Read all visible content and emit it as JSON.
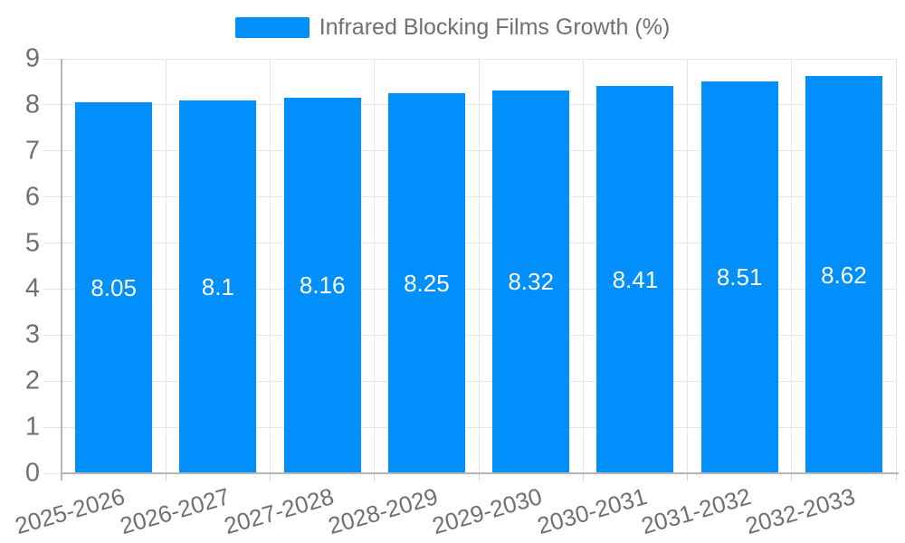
{
  "legend": {
    "label": "Infrared Blocking Films Growth (%)",
    "marker_color": "#008FFB"
  },
  "chart_data": {
    "type": "bar",
    "title": "Infrared Blocking Films Growth (%)",
    "categories": [
      "2025-2026",
      "2026-2027",
      "2027-2028",
      "2028-2029",
      "2029-2030",
      "2030-2031",
      "2031-2032",
      "2032-2033"
    ],
    "values": [
      8.05,
      8.1,
      8.16,
      8.25,
      8.32,
      8.41,
      8.51,
      8.62
    ],
    "value_labels": [
      "8.05",
      "8.1",
      "8.16",
      "8.25",
      "8.32",
      "8.41",
      "8.51",
      "8.62"
    ],
    "xlabel": "",
    "ylabel": "",
    "ylim": [
      0,
      9
    ],
    "yticks": [
      0,
      1,
      2,
      3,
      4,
      5,
      6,
      7,
      8,
      9
    ],
    "grid": true,
    "legend_position": "top",
    "x_label_rotation_deg": -16,
    "colors": {
      "bar": "#008FFB",
      "value_text": "#ffffff",
      "tick_text": "#707070",
      "grid": "#e6e6e6",
      "axis_line": "#b6b6b6"
    }
  }
}
